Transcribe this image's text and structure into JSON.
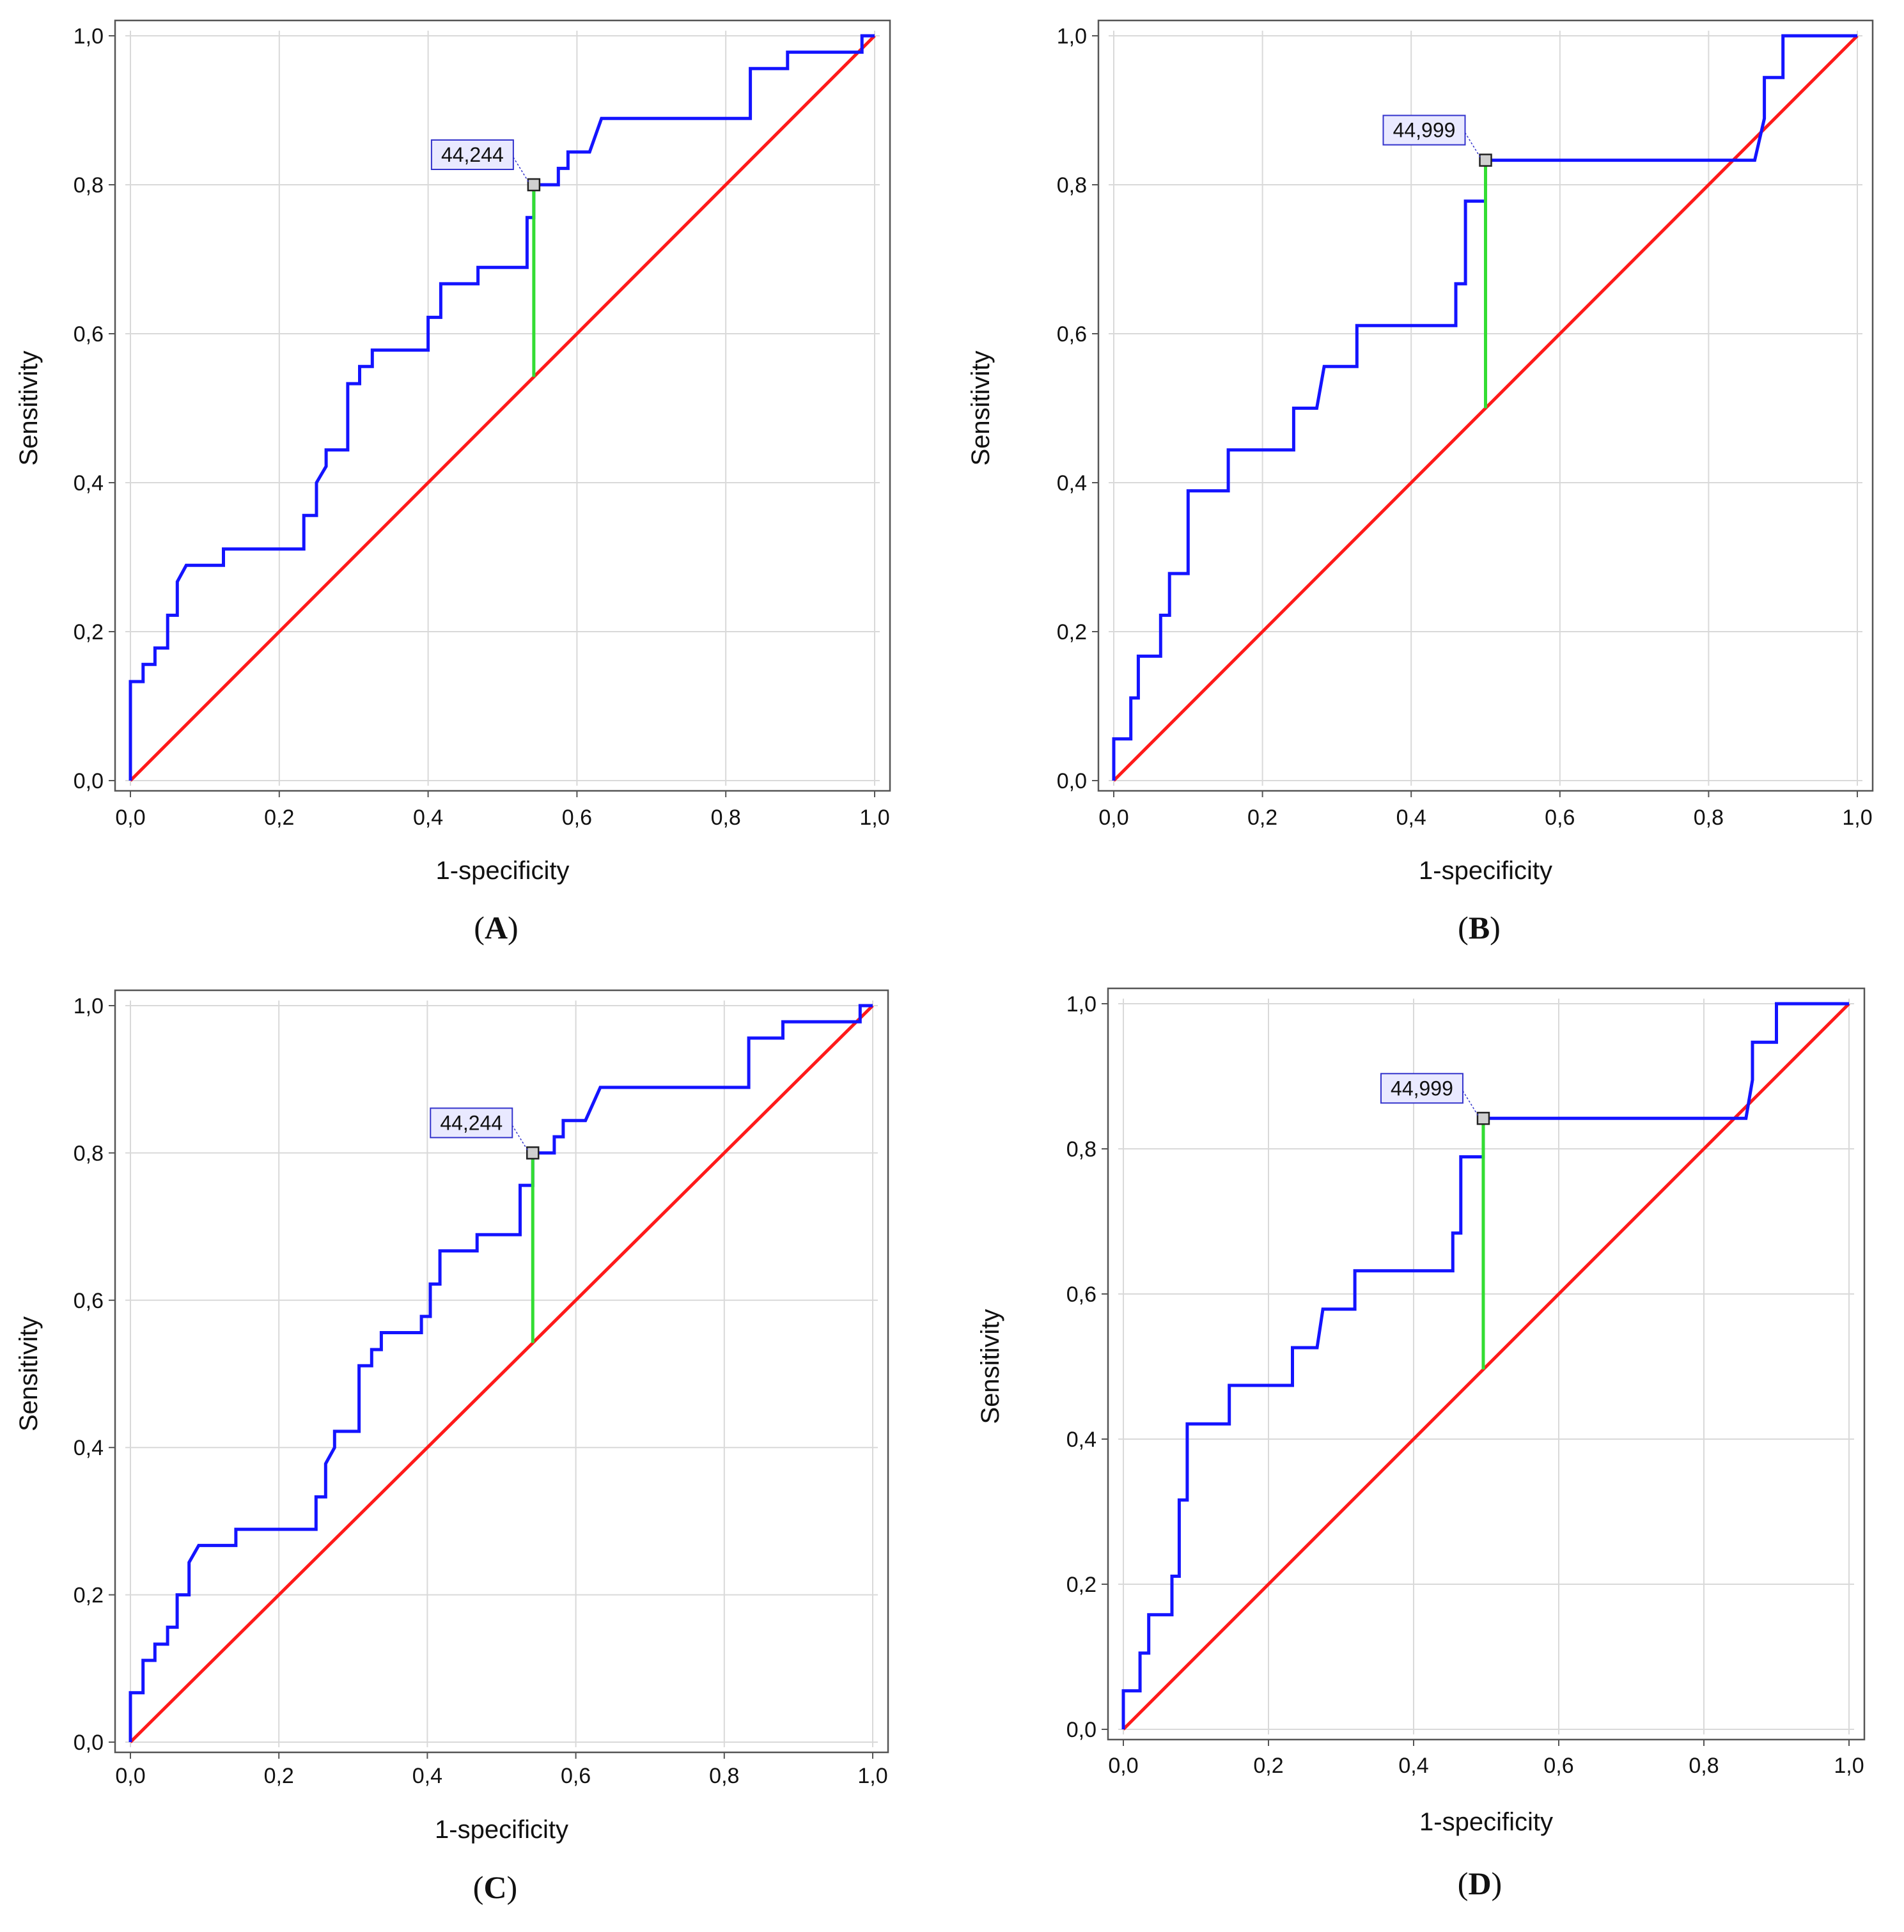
{
  "colors": {
    "roc_curve": "#1414ff",
    "reference_line": "#ff1a1a",
    "cutoff_line": "#33dd33",
    "grid": "#d9d9d9",
    "frame": "#555555",
    "label_box_fill": "#e9e9ff",
    "label_box_stroke": "#3333cc"
  },
  "chart_data": [
    {
      "panel": "A",
      "panel_label": "A",
      "type": "line",
      "title": "",
      "xlabel": "1-specificity",
      "ylabel": "Sensitivity",
      "xlim": [
        0,
        1.0
      ],
      "ylim": [
        0,
        1.0
      ],
      "grid": true,
      "xticks": [
        "0,0",
        "0,2",
        "0,4",
        "0,6",
        "0,8",
        "1,0"
      ],
      "yticks": [
        "0,0",
        "0,2",
        "0,4",
        "0,6",
        "0,8",
        "1,0"
      ],
      "cutoff_label": "44,244",
      "cutoff_point": {
        "x": 0.542,
        "y": 0.8,
        "ref_y": 0.542
      },
      "series": [
        {
          "name": "ROC",
          "points": [
            [
              0,
              0
            ],
            [
              0,
              0.133
            ],
            [
              0.017,
              0.133
            ],
            [
              0.017,
              0.156
            ],
            [
              0.033,
              0.156
            ],
            [
              0.033,
              0.178
            ],
            [
              0.05,
              0.178
            ],
            [
              0.05,
              0.222
            ],
            [
              0.063,
              0.222
            ],
            [
              0.063,
              0.267
            ],
            [
              0.075,
              0.289
            ],
            [
              0.125,
              0.289
            ],
            [
              0.125,
              0.311
            ],
            [
              0.233,
              0.311
            ],
            [
              0.233,
              0.356
            ],
            [
              0.25,
              0.356
            ],
            [
              0.25,
              0.4
            ],
            [
              0.263,
              0.422
            ],
            [
              0.263,
              0.444
            ],
            [
              0.292,
              0.444
            ],
            [
              0.292,
              0.533
            ],
            [
              0.308,
              0.533
            ],
            [
              0.308,
              0.556
            ],
            [
              0.325,
              0.556
            ],
            [
              0.325,
              0.578
            ],
            [
              0.4,
              0.578
            ],
            [
              0.4,
              0.622
            ],
            [
              0.417,
              0.622
            ],
            [
              0.417,
              0.667
            ],
            [
              0.467,
              0.667
            ],
            [
              0.467,
              0.689
            ],
            [
              0.533,
              0.689
            ],
            [
              0.533,
              0.756
            ],
            [
              0.542,
              0.756
            ],
            [
              0.542,
              0.8
            ],
            [
              0.575,
              0.8
            ],
            [
              0.575,
              0.822
            ],
            [
              0.588,
              0.822
            ],
            [
              0.588,
              0.844
            ],
            [
              0.617,
              0.844
            ],
            [
              0.633,
              0.889
            ],
            [
              0.833,
              0.889
            ],
            [
              0.833,
              0.956
            ],
            [
              0.883,
              0.956
            ],
            [
              0.883,
              0.978
            ],
            [
              0.983,
              0.978
            ],
            [
              0.983,
              1.0
            ],
            [
              1.0,
              1.0
            ]
          ]
        },
        {
          "name": "Reference",
          "points": [
            [
              0,
              0
            ],
            [
              1,
              1
            ]
          ]
        }
      ]
    },
    {
      "panel": "B",
      "panel_label": "B",
      "type": "line",
      "title": "",
      "xlabel": "1-specificity",
      "ylabel": "Sensitivity",
      "xlim": [
        0,
        1.0
      ],
      "ylim": [
        0,
        1.0
      ],
      "grid": true,
      "xticks": [
        "0,0",
        "0,2",
        "0,4",
        "0,6",
        "0,8",
        "1,0"
      ],
      "yticks": [
        "0,0",
        "0,2",
        "0,4",
        "0,6",
        "0,8",
        "1,0"
      ],
      "cutoff_label": "44,999",
      "cutoff_point": {
        "x": 0.5,
        "y": 0.833,
        "ref_y": 0.5
      },
      "series": [
        {
          "name": "ROC",
          "points": [
            [
              0,
              0
            ],
            [
              0,
              0.056
            ],
            [
              0.023,
              0.056
            ],
            [
              0.023,
              0.111
            ],
            [
              0.033,
              0.111
            ],
            [
              0.033,
              0.167
            ],
            [
              0.063,
              0.167
            ],
            [
              0.063,
              0.222
            ],
            [
              0.075,
              0.222
            ],
            [
              0.075,
              0.278
            ],
            [
              0.1,
              0.278
            ],
            [
              0.1,
              0.389
            ],
            [
              0.154,
              0.389
            ],
            [
              0.154,
              0.444
            ],
            [
              0.242,
              0.444
            ],
            [
              0.242,
              0.5
            ],
            [
              0.273,
              0.5
            ],
            [
              0.283,
              0.556
            ],
            [
              0.327,
              0.556
            ],
            [
              0.327,
              0.611
            ],
            [
              0.46,
              0.611
            ],
            [
              0.46,
              0.667
            ],
            [
              0.473,
              0.667
            ],
            [
              0.473,
              0.778
            ],
            [
              0.5,
              0.778
            ],
            [
              0.5,
              0.833
            ],
            [
              0.862,
              0.833
            ],
            [
              0.875,
              0.889
            ],
            [
              0.875,
              0.944
            ],
            [
              0.9,
              0.944
            ],
            [
              0.9,
              1.0
            ],
            [
              1.0,
              1.0
            ]
          ]
        },
        {
          "name": "Reference",
          "points": [
            [
              0,
              0
            ],
            [
              1,
              1
            ]
          ]
        }
      ]
    },
    {
      "panel": "C",
      "panel_label": "C",
      "type": "line",
      "title": "",
      "xlabel": "1-specificity",
      "ylabel": "Sensitivity",
      "xlim": [
        0,
        1.0
      ],
      "ylim": [
        0,
        1.0
      ],
      "grid": true,
      "xticks": [
        "0,0",
        "0,2",
        "0,4",
        "0,6",
        "0,8",
        "1,0"
      ],
      "yticks": [
        "0,0",
        "0,2",
        "0,4",
        "0,6",
        "0,8",
        "1,0"
      ],
      "cutoff_label": "44,244",
      "cutoff_point": {
        "x": 0.542,
        "y": 0.8,
        "ref_y": 0.542
      },
      "series": [
        {
          "name": "ROC",
          "points": [
            [
              0,
              0
            ],
            [
              0,
              0.067
            ],
            [
              0.017,
              0.067
            ],
            [
              0.017,
              0.111
            ],
            [
              0.033,
              0.111
            ],
            [
              0.033,
              0.133
            ],
            [
              0.05,
              0.133
            ],
            [
              0.05,
              0.156
            ],
            [
              0.063,
              0.156
            ],
            [
              0.063,
              0.2
            ],
            [
              0.079,
              0.2
            ],
            [
              0.079,
              0.244
            ],
            [
              0.092,
              0.267
            ],
            [
              0.142,
              0.267
            ],
            [
              0.142,
              0.289
            ],
            [
              0.25,
              0.289
            ],
            [
              0.25,
              0.333
            ],
            [
              0.263,
              0.333
            ],
            [
              0.263,
              0.378
            ],
            [
              0.275,
              0.4
            ],
            [
              0.275,
              0.422
            ],
            [
              0.308,
              0.422
            ],
            [
              0.308,
              0.511
            ],
            [
              0.325,
              0.511
            ],
            [
              0.325,
              0.533
            ],
            [
              0.338,
              0.533
            ],
            [
              0.338,
              0.556
            ],
            [
              0.392,
              0.556
            ],
            [
              0.392,
              0.578
            ],
            [
              0.404,
              0.578
            ],
            [
              0.404,
              0.622
            ],
            [
              0.417,
              0.622
            ],
            [
              0.417,
              0.667
            ],
            [
              0.467,
              0.667
            ],
            [
              0.467,
              0.689
            ],
            [
              0.525,
              0.689
            ],
            [
              0.525,
              0.756
            ],
            [
              0.542,
              0.756
            ],
            [
              0.542,
              0.8
            ],
            [
              0.571,
              0.8
            ],
            [
              0.571,
              0.822
            ],
            [
              0.583,
              0.822
            ],
            [
              0.583,
              0.844
            ],
            [
              0.613,
              0.844
            ],
            [
              0.633,
              0.889
            ],
            [
              0.833,
              0.889
            ],
            [
              0.833,
              0.956
            ],
            [
              0.879,
              0.956
            ],
            [
              0.879,
              0.978
            ],
            [
              0.983,
              0.978
            ],
            [
              0.983,
              1.0
            ],
            [
              1.0,
              1.0
            ]
          ]
        },
        {
          "name": "Reference",
          "points": [
            [
              0,
              0
            ],
            [
              1,
              1
            ]
          ]
        }
      ]
    },
    {
      "panel": "D",
      "panel_label": "D",
      "type": "line",
      "title": "",
      "xlabel": "1-specificity",
      "ylabel": "Sensitivity",
      "xlim": [
        0,
        1.0
      ],
      "ylim": [
        0,
        1.0
      ],
      "grid": true,
      "xticks": [
        "0,0",
        "0,2",
        "0,4",
        "0,6",
        "0,8",
        "1,0"
      ],
      "yticks": [
        "0,0",
        "0,2",
        "0,4",
        "0,6",
        "0,8",
        "1,0"
      ],
      "cutoff_label": "44,999",
      "cutoff_point": {
        "x": 0.496,
        "y": 0.842,
        "ref_y": 0.496
      },
      "series": [
        {
          "name": "ROC",
          "points": [
            [
              0,
              0
            ],
            [
              0,
              0.053
            ],
            [
              0.023,
              0.053
            ],
            [
              0.023,
              0.105
            ],
            [
              0.035,
              0.105
            ],
            [
              0.035,
              0.158
            ],
            [
              0.067,
              0.158
            ],
            [
              0.067,
              0.211
            ],
            [
              0.077,
              0.211
            ],
            [
              0.077,
              0.316
            ],
            [
              0.088,
              0.316
            ],
            [
              0.088,
              0.421
            ],
            [
              0.146,
              0.421
            ],
            [
              0.146,
              0.474
            ],
            [
              0.233,
              0.474
            ],
            [
              0.233,
              0.526
            ],
            [
              0.267,
              0.526
            ],
            [
              0.275,
              0.579
            ],
            [
              0.319,
              0.579
            ],
            [
              0.319,
              0.632
            ],
            [
              0.454,
              0.632
            ],
            [
              0.454,
              0.684
            ],
            [
              0.465,
              0.684
            ],
            [
              0.465,
              0.789
            ],
            [
              0.496,
              0.789
            ],
            [
              0.496,
              0.842
            ],
            [
              0.858,
              0.842
            ],
            [
              0.867,
              0.895
            ],
            [
              0.867,
              0.947
            ],
            [
              0.9,
              0.947
            ],
            [
              0.9,
              1.0
            ],
            [
              1.0,
              1.0
            ]
          ]
        },
        {
          "name": "Reference",
          "points": [
            [
              0,
              0
            ],
            [
              1,
              1
            ]
          ]
        }
      ]
    }
  ]
}
